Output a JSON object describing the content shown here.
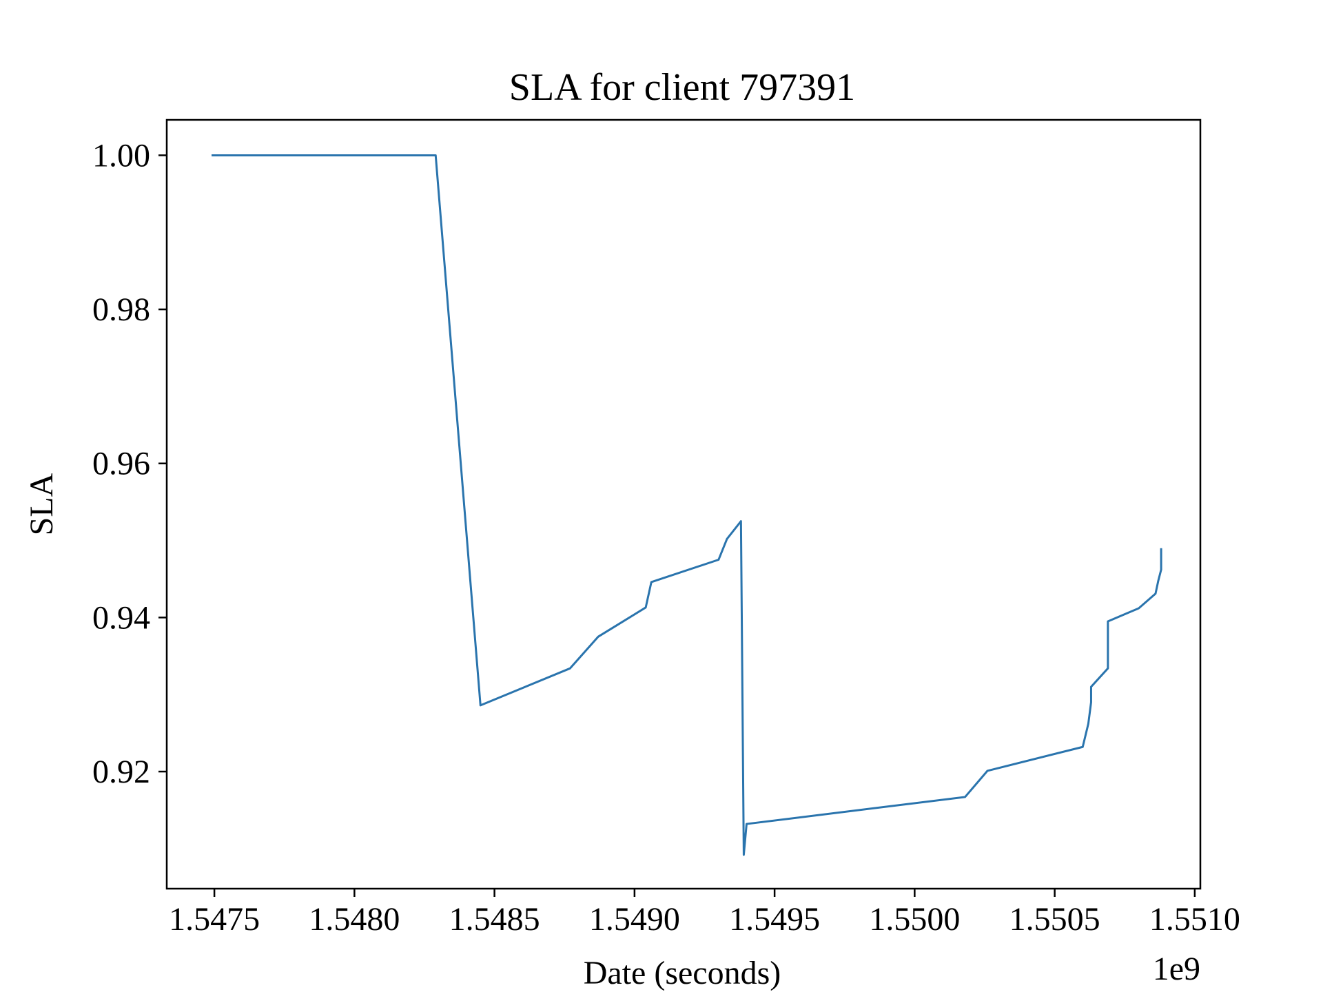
{
  "colors": {
    "line": "#2a74ad",
    "axes": "#000000",
    "background": "#ffffff"
  },
  "chart_data": {
    "type": "line",
    "title": "SLA for client 797391",
    "xlabel": "Date (seconds)",
    "ylabel": "SLA",
    "x_offset_text": "1e9",
    "xlim": [
      1.54733,
      1.55102
    ],
    "ylim": [
      0.9048,
      1.0046
    ],
    "grid": false,
    "x_ticks": [
      1.5475,
      1.548,
      1.5485,
      1.549,
      1.5495,
      1.55,
      1.5505,
      1.551
    ],
    "x_tick_labels": [
      "1.5475",
      "1.5480",
      "1.5485",
      "1.5490",
      "1.5495",
      "1.5500",
      "1.5505",
      "1.5510"
    ],
    "y_ticks": [
      0.92,
      0.94,
      0.96,
      0.98,
      1.0
    ],
    "y_tick_labels": [
      "0.92",
      "0.94",
      "0.96",
      "0.98",
      "1.00"
    ],
    "series": [
      {
        "x": [
          1.54749,
          1.54829,
          1.54845,
          1.54877,
          1.54887,
          1.54904,
          1.54906,
          1.5493,
          1.54933,
          1.54938,
          1.54939,
          1.54939,
          1.5494,
          1.55018,
          1.55026,
          1.5506,
          1.55062,
          1.55063,
          1.55063,
          1.55069,
          1.55069,
          1.5508,
          1.55086,
          1.55087,
          1.55088,
          1.55088
        ],
        "y": [
          1.0,
          1.0,
          0.9286,
          0.9334,
          0.9375,
          0.9413,
          0.9446,
          0.9475,
          0.9502,
          0.9525,
          0.9092,
          0.9092,
          0.9132,
          0.9167,
          0.9201,
          0.9232,
          0.9262,
          0.929,
          0.931,
          0.9334,
          0.9395,
          0.9412,
          0.9431,
          0.9448,
          0.9462,
          0.949
        ]
      }
    ]
  }
}
